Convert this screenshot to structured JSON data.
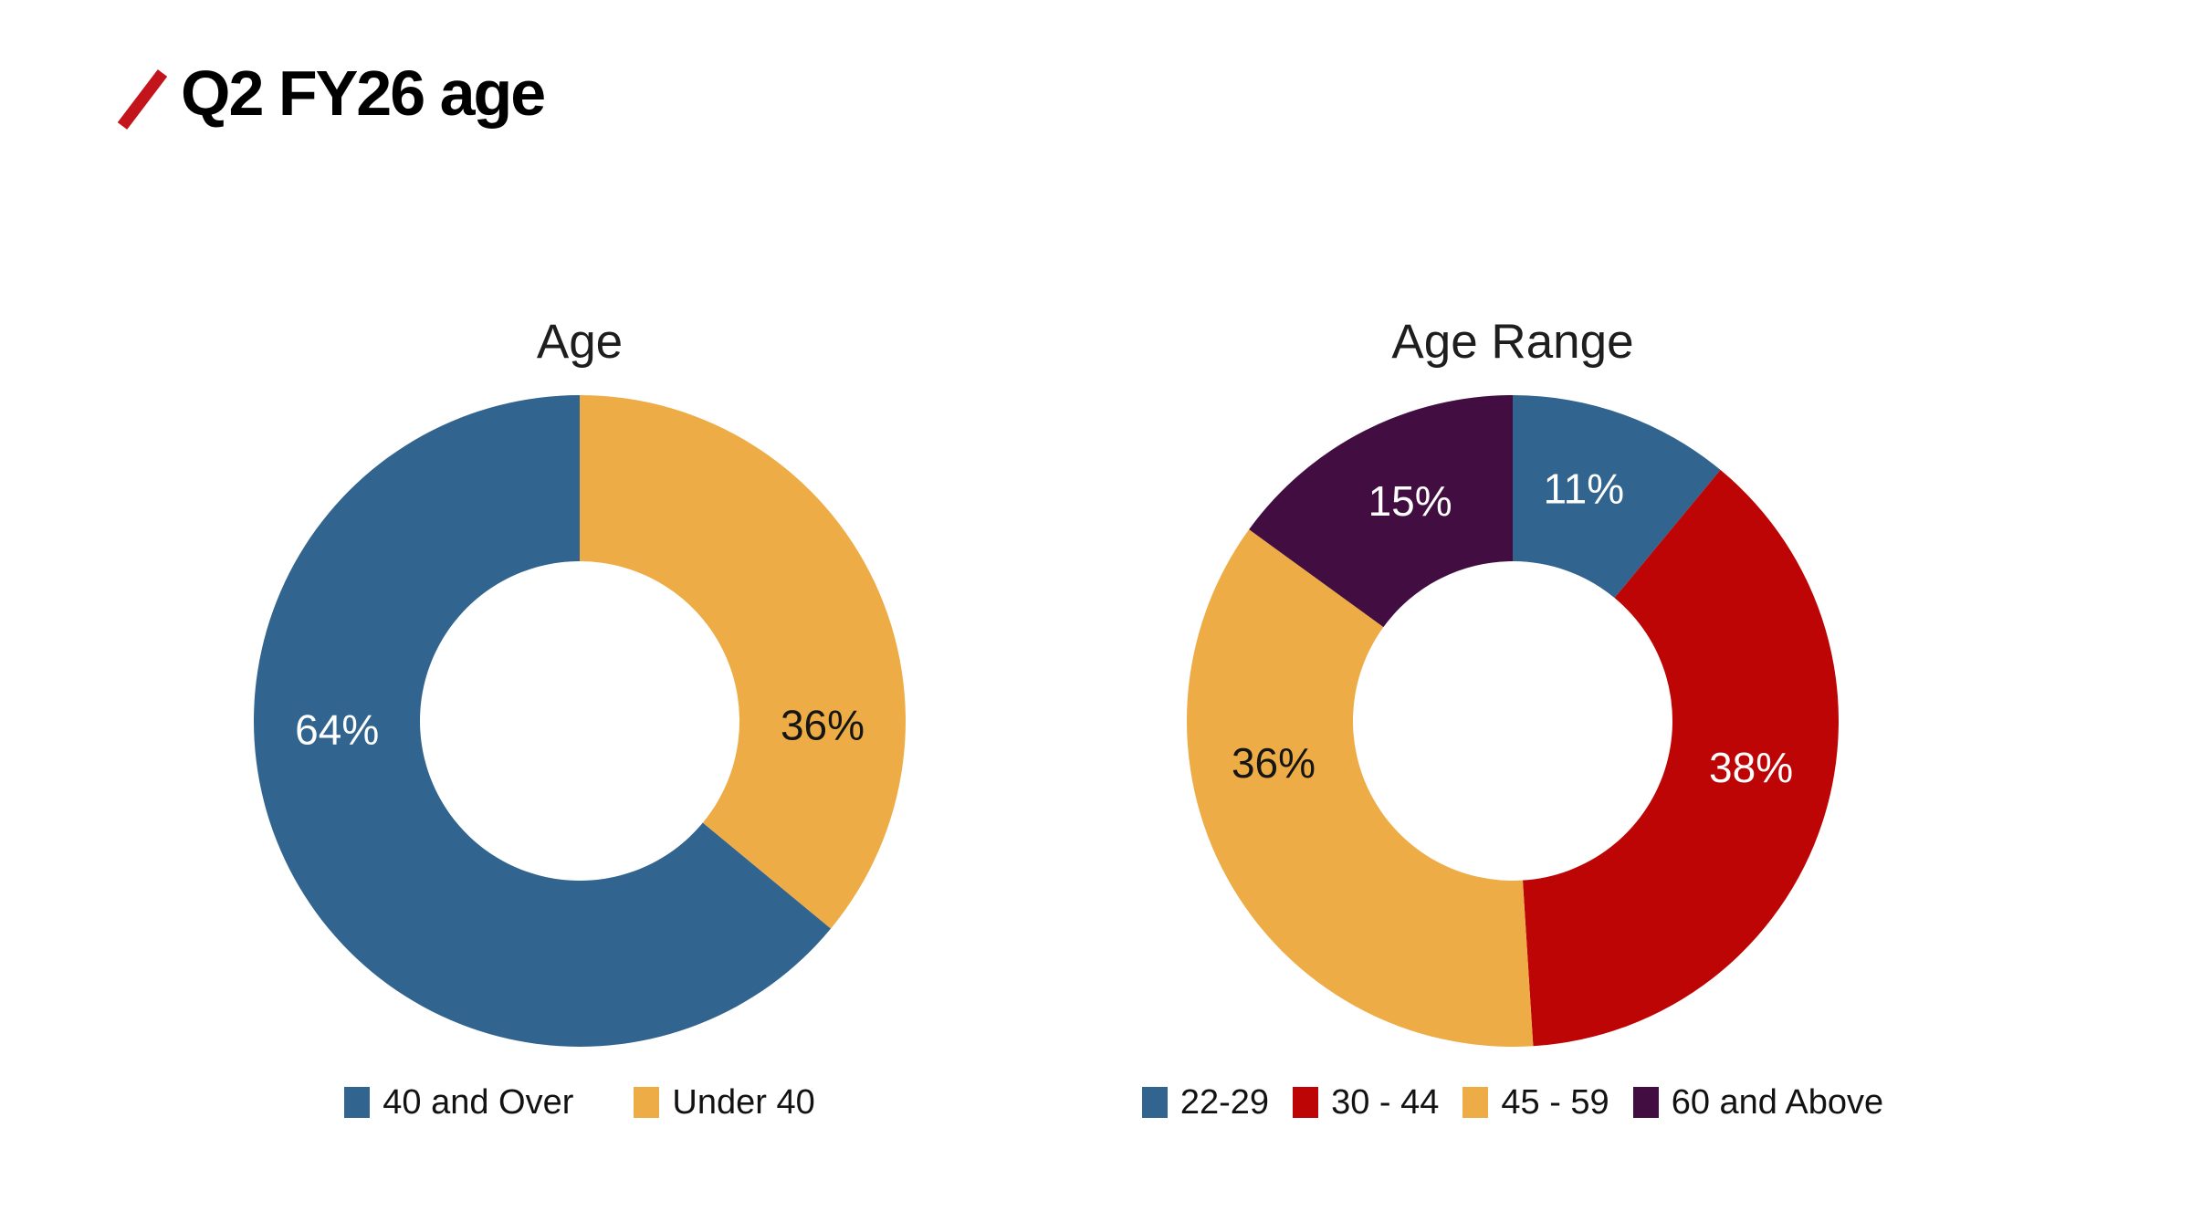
{
  "header": {
    "title": "Q2 FY26 age",
    "slash_icon_color": "#C3131B"
  },
  "chart_data": [
    {
      "type": "pie",
      "subtype": "donut",
      "title": "Age",
      "legend_position": "bottom",
      "grid": false,
      "inner_radius_ratio": 0.49,
      "rotation_deg": 129.6,
      "slices": [
        {
          "label": "40 and Over",
          "value": 64,
          "pct_label": "64%",
          "color": "#31648E",
          "pct_label_color": "#FFFFFF",
          "label_angle_deg": 268
        },
        {
          "label": "Under 40",
          "value": 36,
          "pct_label": "36%",
          "color": "#EDAC45",
          "pct_label_color": "#151515",
          "label_angle_deg": 91
        }
      ]
    },
    {
      "type": "pie",
      "subtype": "donut",
      "title": "Age Range",
      "legend_position": "bottom",
      "grid": false,
      "inner_radius_ratio": 0.49,
      "rotation_deg": 0,
      "slices": [
        {
          "label": "22-29",
          "value": 11,
          "pct_label": "11%",
          "color": "#31648E",
          "pct_label_color": "#FFFFFF",
          "label_angle_deg": 17
        },
        {
          "label": "30 - 44",
          "value": 38,
          "pct_label": "38%",
          "color": "#BE0505",
          "pct_label_color": "#FFFFFF",
          "label_angle_deg": 101
        },
        {
          "label": "45 - 59",
          "value": 36,
          "pct_label": "36%",
          "color": "#EDAC45",
          "pct_label_color": "#151515",
          "label_angle_deg": 260
        },
        {
          "label": "60 and Above",
          "value": 15,
          "pct_label": "15%",
          "color": "#420D41",
          "pct_label_color": "#FFFFFF",
          "label_angle_deg": 335
        }
      ]
    }
  ]
}
